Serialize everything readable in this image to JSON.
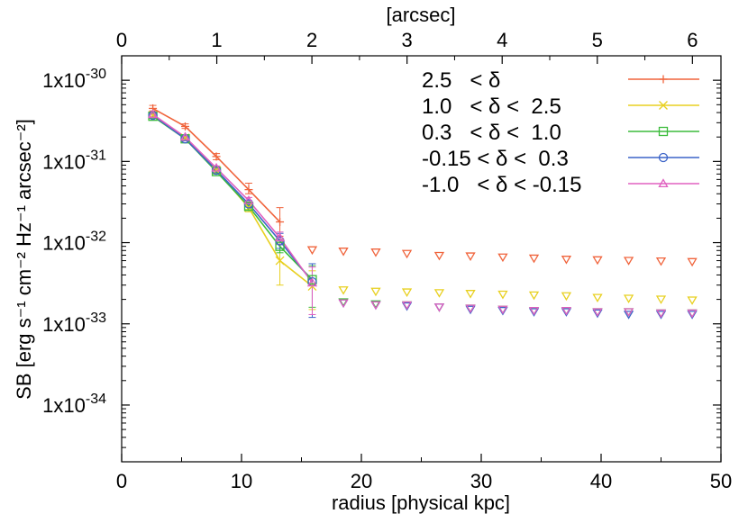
{
  "chart_data": {
    "type": "scatter",
    "xlabel": "radius [physical kpc]",
    "ylabel": "SB [erg s⁻¹ cm⁻² Hz⁻¹ arcsec⁻²]",
    "x2label": "[arcsec]",
    "xlim": [
      0,
      50
    ],
    "ylim": [
      2e-35,
      2e-30
    ],
    "yscale": "log",
    "x2lim": [
      0,
      6.3
    ],
    "xticks": [
      "0",
      "10",
      "20",
      "30",
      "40",
      "50"
    ],
    "x2ticks": [
      "0",
      "1",
      "2",
      "3",
      "4",
      "5",
      "6"
    ],
    "yticks": [
      {
        "value": 1e-30,
        "mant": "1x10",
        "exp": "-30"
      },
      {
        "value": 1e-31,
        "mant": "1x10",
        "exp": "-31"
      },
      {
        "value": 1e-32,
        "mant": "1x10",
        "exp": "-32"
      },
      {
        "value": 1e-33,
        "mant": "1x10",
        "exp": "-33"
      },
      {
        "value": 1e-34,
        "mant": "1x10",
        "exp": "-34"
      }
    ],
    "legend_position": "top-right",
    "series": [
      {
        "name": "2.5   < δ",
        "color": "#f0643c",
        "marker": "plus",
        "x": [
          2.6,
          5.3,
          7.9,
          10.6,
          13.2
        ],
        "y": [
          4.5e-31,
          2.7e-31,
          1.15e-31,
          4.5e-32,
          1.8e-32
        ],
        "err_low": [
          4.2e-31,
          2.55e-31,
          1.05e-31,
          4e-32,
          1.2e-32
        ],
        "err_high": [
          4.9e-31,
          2.9e-31,
          1.25e-31,
          5.4e-32,
          2.7e-32
        ],
        "upper_x": [
          15.9,
          18.5,
          21.2,
          23.8,
          26.5,
          29.1,
          31.8,
          34.4,
          37.1,
          39.7,
          42.3,
          45.0,
          47.6
        ],
        "upper_y": [
          8.1e-33,
          7.8e-33,
          7.6e-33,
          7.3e-33,
          6.9e-33,
          6.8e-33,
          6.6e-33,
          6.4e-33,
          6.2e-33,
          6.1e-33,
          6e-33,
          5.9e-33,
          5.8e-33
        ]
      },
      {
        "name": "1.0   < δ <  2.5",
        "color": "#e8d020",
        "marker": "cross",
        "x": [
          2.6,
          5.3,
          7.9,
          10.6,
          13.2,
          15.9
        ],
        "y": [
          3.7e-31,
          1.95e-31,
          7.8e-32,
          2.7e-32,
          6e-33,
          2.9e-33
        ],
        "err_low": [
          3.45e-31,
          1.85e-31,
          7.2e-32,
          2.4e-32,
          3e-33,
          1.5e-33
        ],
        "err_high": [
          3.95e-31,
          2.05e-31,
          8.4e-32,
          3e-32,
          9.5e-33,
          4.5e-33
        ],
        "upper_x": [
          18.5,
          21.2,
          23.8,
          26.5,
          29.1,
          31.8,
          34.4,
          37.1,
          39.7,
          42.3,
          45.0,
          47.6
        ],
        "upper_y": [
          2.6e-33,
          2.5e-33,
          2.45e-33,
          2.4e-33,
          2.35e-33,
          2.3e-33,
          2.25e-33,
          2.2e-33,
          2.1e-33,
          2.05e-33,
          2e-33,
          1.95e-33
        ]
      },
      {
        "name": "0.3   < δ <  1.0",
        "color": "#3cbc3c",
        "marker": "square",
        "x": [
          2.6,
          5.3,
          7.9,
          10.6,
          13.2,
          15.9
        ],
        "y": [
          3.6e-31,
          1.9e-31,
          7.5e-32,
          2.8e-32,
          9e-33,
          3.5e-33
        ],
        "err_low": [
          3.4e-31,
          1.8e-31,
          7e-32,
          2.55e-32,
          7.5e-33,
          1.6e-33
        ],
        "err_high": [
          3.8e-31,
          2e-31,
          8e-32,
          3.1e-32,
          1.1e-32,
          5.2e-33
        ],
        "upper_x": [
          18.5,
          21.2,
          23.8,
          26.5,
          29.1,
          31.8,
          34.4,
          37.1,
          39.7,
          42.3,
          45.0,
          47.6
        ],
        "upper_y": [
          1.85e-33,
          1.75e-33,
          1.7e-33,
          1.6e-33,
          1.55e-33,
          1.5e-33,
          1.45e-33,
          1.45e-33,
          1.4e-33,
          1.4e-33,
          1.35e-33,
          1.35e-33
        ]
      },
      {
        "name": "-0.15 < δ <  0.3",
        "color": "#3c64c8",
        "marker": "circle",
        "x": [
          2.6,
          5.3,
          7.9,
          10.6,
          13.2,
          15.9
        ],
        "y": [
          3.7e-31,
          1.9e-31,
          7.8e-32,
          3e-32,
          1.05e-32,
          3.3e-33
        ],
        "err_low": [
          3.5e-31,
          1.8e-31,
          7.3e-32,
          2.75e-32,
          8.5e-33,
          1.2e-33
        ],
        "err_high": [
          3.9e-31,
          2e-31,
          8.3e-32,
          3.3e-32,
          1.3e-32,
          5.5e-33
        ],
        "upper_x": [
          18.5,
          21.2,
          23.8,
          26.5,
          29.1,
          31.8,
          34.4,
          37.1,
          39.7,
          42.3,
          45.0,
          47.6
        ],
        "upper_y": [
          1.8e-33,
          1.7e-33,
          1.65e-33,
          1.6e-33,
          1.5e-33,
          1.45e-33,
          1.4e-33,
          1.4e-33,
          1.35e-33,
          1.3e-33,
          1.3e-33,
          1.3e-33
        ]
      },
      {
        "name": "-1.0   < δ < -0.15",
        "color": "#e060c0",
        "marker": "triangle",
        "x": [
          2.6,
          5.3,
          7.9,
          10.6,
          13.2,
          15.9
        ],
        "y": [
          3.8e-31,
          2e-31,
          8.3e-32,
          3.3e-32,
          1.15e-32,
          3.2e-33
        ],
        "err_low": [
          3.6e-31,
          1.9e-31,
          7.8e-32,
          3.05e-32,
          9.5e-33,
          1.3e-33
        ],
        "err_high": [
          4e-31,
          2.1e-31,
          8.8e-32,
          3.6e-32,
          1.35e-32,
          5e-33
        ],
        "upper_x": [
          18.5,
          21.2,
          23.8,
          26.5,
          29.1,
          31.8,
          34.4,
          37.1,
          39.7,
          42.3,
          45.0,
          47.6
        ],
        "upper_y": [
          1.8e-33,
          1.7e-33,
          1.7e-33,
          1.6e-33,
          1.55e-33,
          1.5e-33,
          1.45e-33,
          1.45e-33,
          1.4e-33,
          1.4e-33,
          1.35e-33,
          1.35e-33
        ]
      }
    ]
  }
}
